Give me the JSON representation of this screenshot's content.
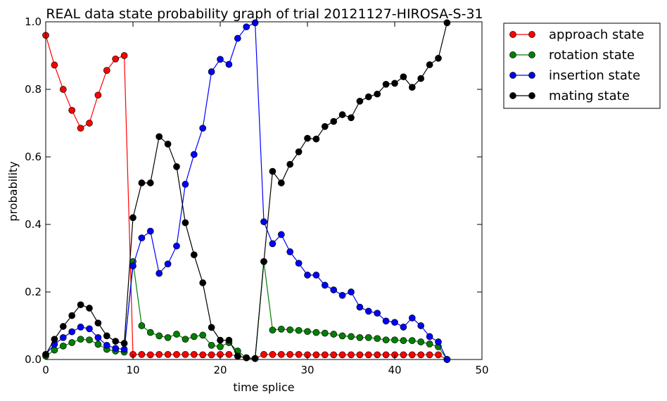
{
  "chart_data": {
    "type": "line",
    "title": "REAL data state probability graph of trial 20121127-HIROSA-S-31",
    "xlabel": "time splice",
    "ylabel": "probability",
    "xlim": [
      0,
      50
    ],
    "ylim": [
      0,
      1.0
    ],
    "xticks": [
      "0",
      "10",
      "20",
      "30",
      "40",
      "50"
    ],
    "yticks": [
      "0.0",
      "0.2",
      "0.4",
      "0.6",
      "0.8",
      "1.0"
    ],
    "grid": false,
    "legend_position": "outside-top-right",
    "x": [
      0,
      1,
      2,
      3,
      4,
      5,
      6,
      7,
      8,
      9,
      10,
      11,
      12,
      13,
      14,
      15,
      16,
      17,
      18,
      19,
      20,
      21,
      22,
      23,
      24,
      25,
      26,
      27,
      28,
      29,
      30,
      31,
      32,
      33,
      34,
      35,
      36,
      37,
      38,
      39,
      40,
      41,
      42,
      43,
      44,
      45,
      46
    ],
    "series": [
      {
        "name": "approach state",
        "color": "#ff0000",
        "values": [
          0.96,
          0.872,
          0.8,
          0.738,
          0.685,
          0.7,
          0.783,
          0.856,
          0.89,
          0.9,
          0.015,
          0.015,
          0.014,
          0.015,
          0.015,
          0.015,
          0.015,
          0.015,
          0.014,
          0.014,
          0.015,
          0.015,
          0.01,
          0.005,
          0.003,
          0.015,
          0.015,
          0.015,
          0.015,
          0.015,
          0.014,
          0.014,
          0.014,
          0.014,
          0.014,
          0.014,
          0.014,
          0.014,
          0.014,
          0.014,
          0.014,
          0.014,
          0.014,
          0.014,
          0.014,
          0.014,
          0.0
        ]
      },
      {
        "name": "rotation state",
        "color": "#008000",
        "values": [
          0.01,
          0.028,
          0.04,
          0.05,
          0.06,
          0.058,
          0.045,
          0.03,
          0.025,
          0.022,
          0.29,
          0.1,
          0.08,
          0.07,
          0.065,
          0.075,
          0.06,
          0.068,
          0.072,
          0.042,
          0.038,
          0.05,
          0.025,
          0.005,
          0.003,
          0.29,
          0.087,
          0.09,
          0.088,
          0.086,
          0.083,
          0.08,
          0.078,
          0.075,
          0.07,
          0.068,
          0.065,
          0.065,
          0.062,
          0.058,
          0.058,
          0.056,
          0.056,
          0.052,
          0.046,
          0.038,
          0.0
        ]
      },
      {
        "name": "insertion state",
        "color": "#0000ff",
        "values": [
          0.015,
          0.045,
          0.065,
          0.082,
          0.096,
          0.091,
          0.065,
          0.042,
          0.033,
          0.03,
          0.277,
          0.36,
          0.38,
          0.255,
          0.283,
          0.336,
          0.519,
          0.607,
          0.685,
          0.852,
          0.889,
          0.874,
          0.951,
          0.985,
          0.997,
          0.408,
          0.343,
          0.37,
          0.319,
          0.285,
          0.25,
          0.25,
          0.22,
          0.206,
          0.19,
          0.2,
          0.155,
          0.143,
          0.137,
          0.114,
          0.11,
          0.096,
          0.123,
          0.1,
          0.068,
          0.052,
          0.0
        ]
      },
      {
        "name": "mating state",
        "color": "#000000",
        "values": [
          0.015,
          0.06,
          0.098,
          0.13,
          0.162,
          0.152,
          0.108,
          0.07,
          0.054,
          0.048,
          0.42,
          0.523,
          0.523,
          0.66,
          0.638,
          0.571,
          0.405,
          0.31,
          0.227,
          0.095,
          0.057,
          0.057,
          0.01,
          0.005,
          0.003,
          0.29,
          0.557,
          0.523,
          0.578,
          0.615,
          0.655,
          0.653,
          0.69,
          0.705,
          0.725,
          0.716,
          0.765,
          0.778,
          0.786,
          0.815,
          0.818,
          0.837,
          0.806,
          0.832,
          0.873,
          0.892,
          0.997
        ]
      }
    ]
  }
}
